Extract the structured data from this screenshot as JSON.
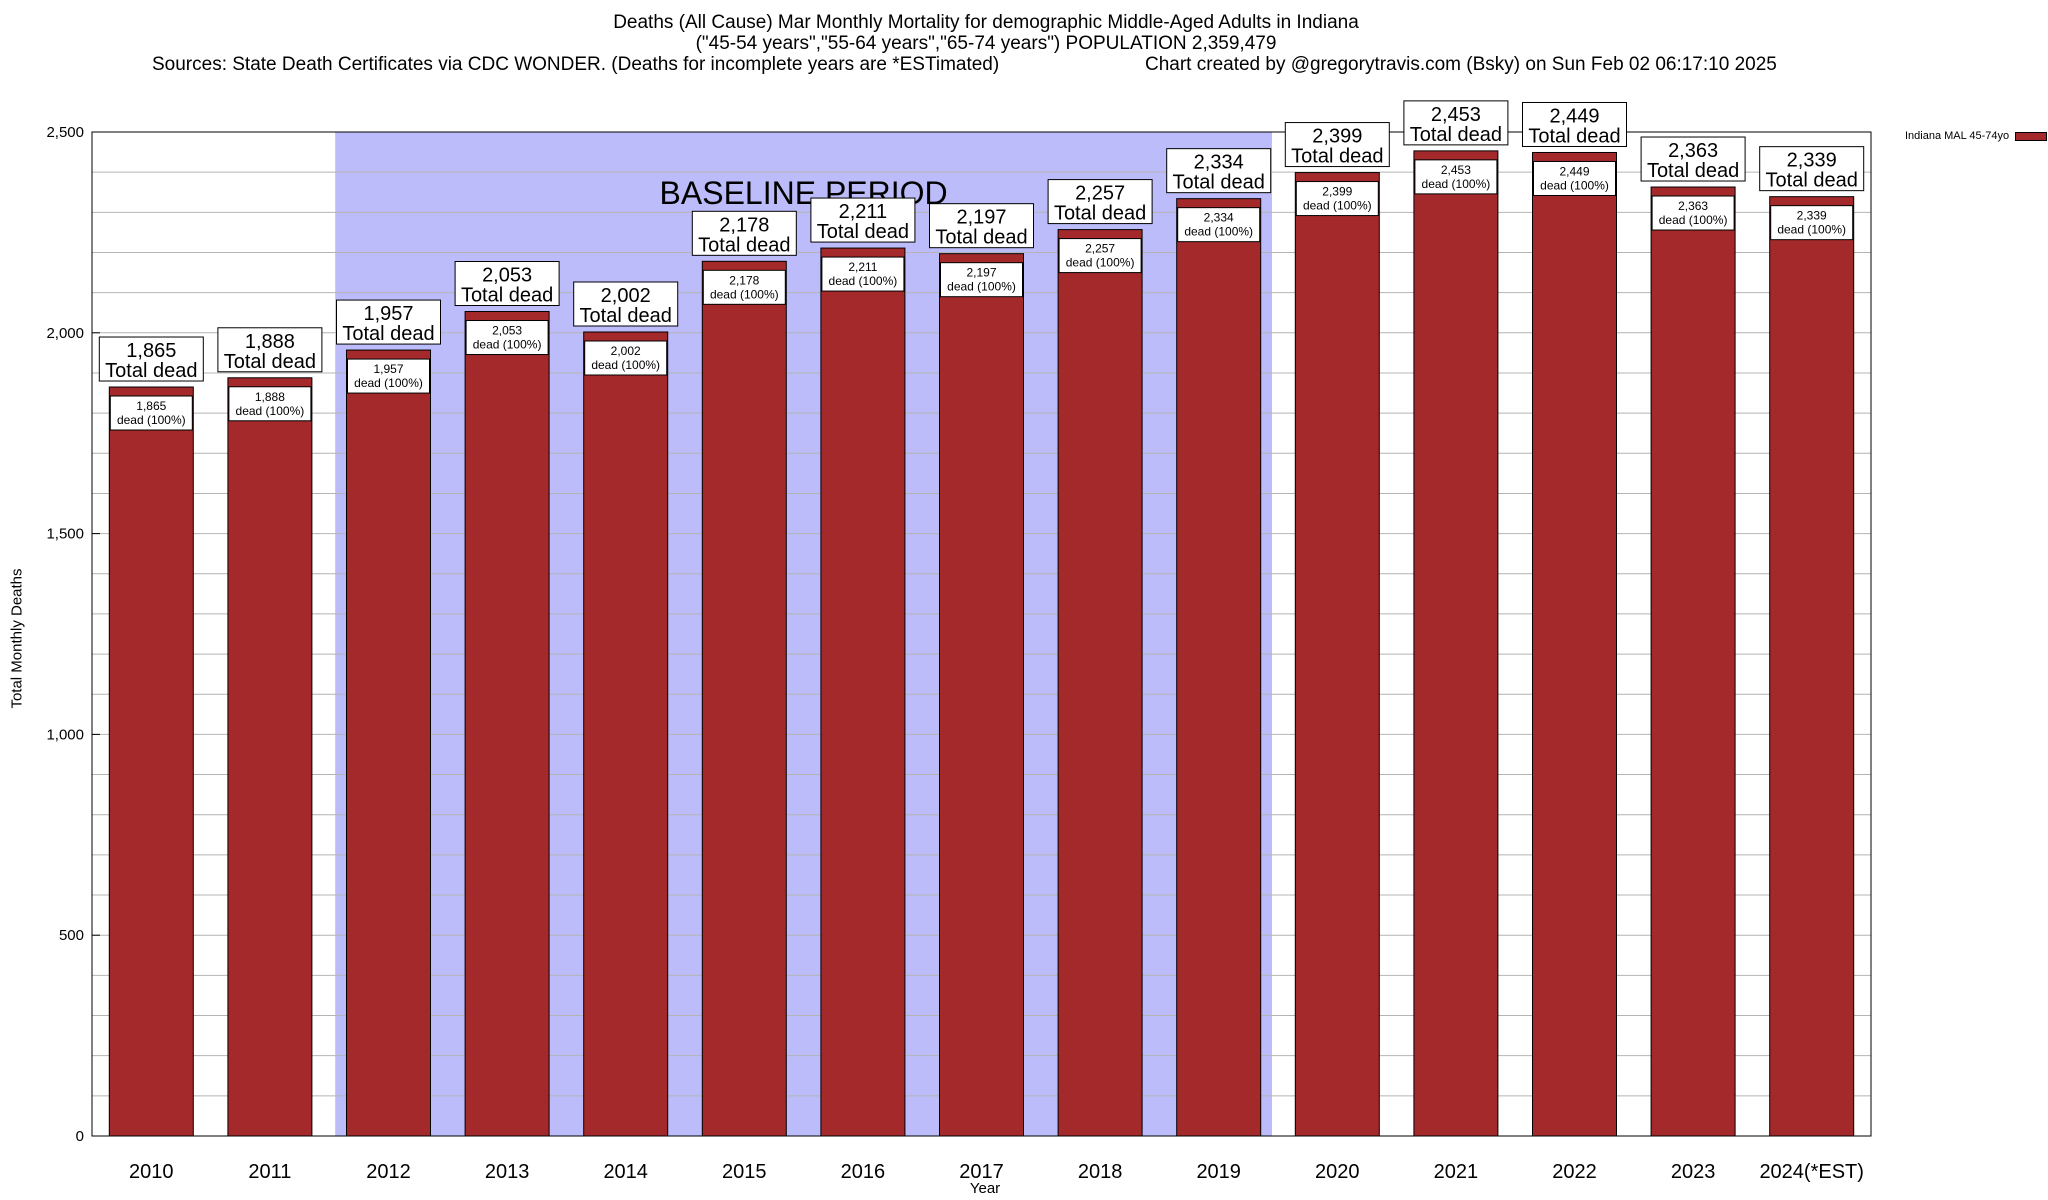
{
  "title": {
    "line1": "Deaths (All Cause) Mar Monthly Mortality for demographic Middle-Aged Adults in Indiana",
    "line2": "(\"45-54 years\",\"55-64 years\",\"65-74 years\") POPULATION 2,359,479",
    "line3_left": "Sources: State Death Certificates via CDC WONDER. (Deaths for incomplete years are *ESTimated)",
    "line3_right": "Chart created by @gregorytravis.com (Bsky) on Sun Feb 02 06:17:10 2025"
  },
  "colors": {
    "bar": "#a3292b",
    "baseline": "#bcbcfa",
    "grid": "#b4b4b4"
  },
  "chart_data": {
    "type": "bar",
    "title": "Deaths (All Cause) Mar Monthly Mortality for demographic Middle-Aged Adults in Indiana",
    "xlabel": "Year",
    "ylabel": "Total Monthly Deaths",
    "ylim": [
      0,
      2500
    ],
    "yticks": [
      0,
      500,
      1000,
      1500,
      2000,
      2500
    ],
    "ytick_labels": [
      "0",
      "500",
      "1,000",
      "1,500",
      "2,000",
      "2,500"
    ],
    "categories": [
      "2010",
      "2011",
      "2012",
      "2013",
      "2014",
      "2015",
      "2016",
      "2017",
      "2018",
      "2019",
      "2020",
      "2021",
      "2022",
      "2023",
      "2024(*EST)"
    ],
    "series": [
      {
        "name": "Indiana MAL 45-74yo",
        "values": [
          1865,
          1888,
          1957,
          2053,
          2002,
          2178,
          2211,
          2197,
          2257,
          2334,
          2399,
          2453,
          2449,
          2363,
          2339
        ]
      }
    ],
    "value_labels": [
      "1,865",
      "1,888",
      "1,957",
      "2,053",
      "2,002",
      "2,178",
      "2,211",
      "2,197",
      "2,257",
      "2,334",
      "2,399",
      "2,453",
      "2,449",
      "2,363",
      "2,339"
    ],
    "top_label_suffix": "Total dead",
    "inner_label_suffix": "dead (100%)",
    "baseline_period": {
      "label": "BASELINE PERIOD",
      "start": "2012",
      "end": "2019"
    },
    "grid": true,
    "legend_position": "top-right"
  }
}
